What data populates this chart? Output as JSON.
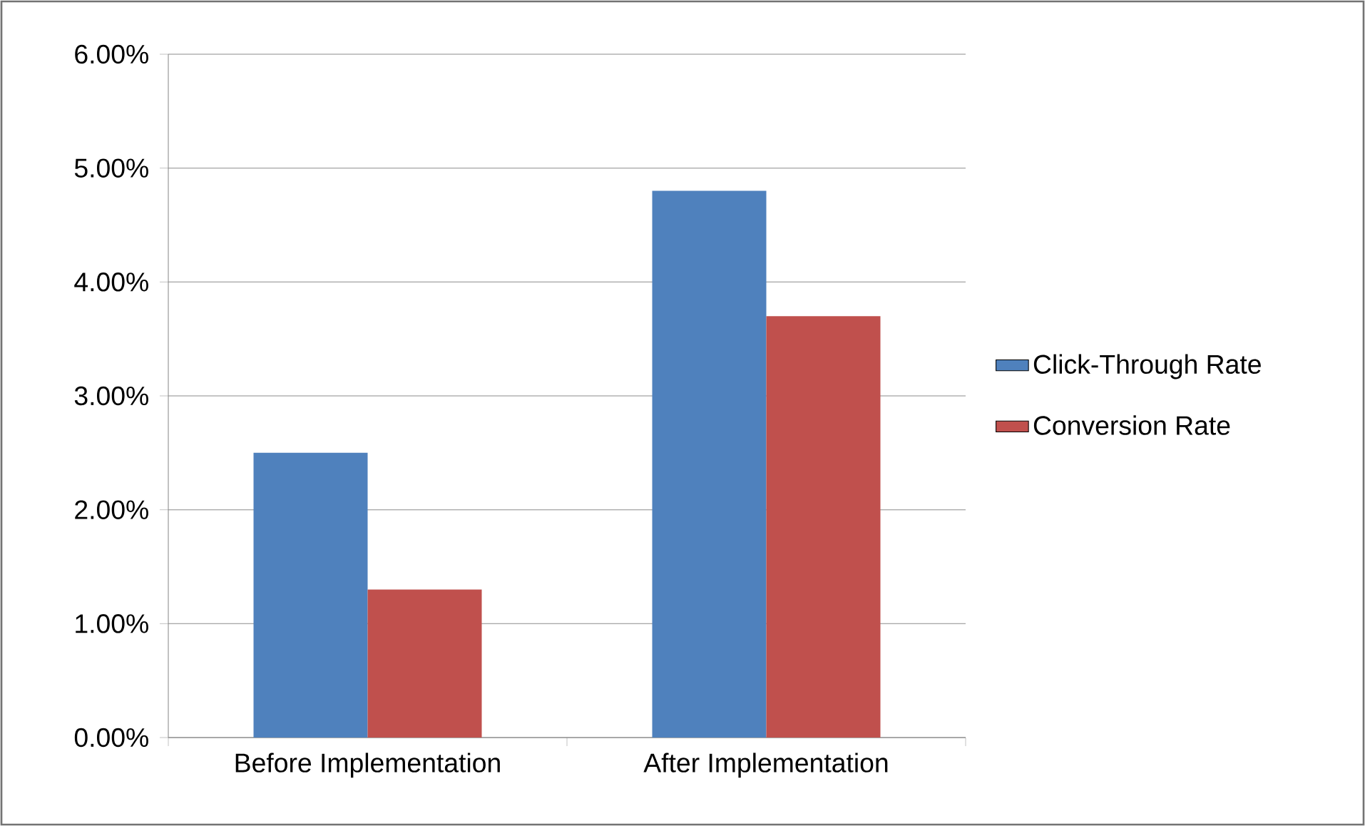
{
  "chart_data": {
    "type": "bar",
    "categories": [
      "Before Implementation",
      "After Implementation"
    ],
    "series": [
      {
        "name": "Click-Through Rate",
        "color": "#4f81bd",
        "values": [
          2.5,
          4.8
        ]
      },
      {
        "name": "Conversion Rate",
        "color": "#c0504d",
        "values": [
          1.3,
          3.7
        ]
      }
    ],
    "ylim": [
      0,
      6
    ],
    "yticks": [
      {
        "value": 0,
        "label": "0.00%"
      },
      {
        "value": 1,
        "label": "1.00%"
      },
      {
        "value": 2,
        "label": "2.00%"
      },
      {
        "value": 3,
        "label": "3.00%"
      },
      {
        "value": 4,
        "label": "4.00%"
      },
      {
        "value": 5,
        "label": "5.00%"
      },
      {
        "value": 6,
        "label": "6.00%"
      }
    ],
    "grid": "y",
    "legend": "right"
  }
}
